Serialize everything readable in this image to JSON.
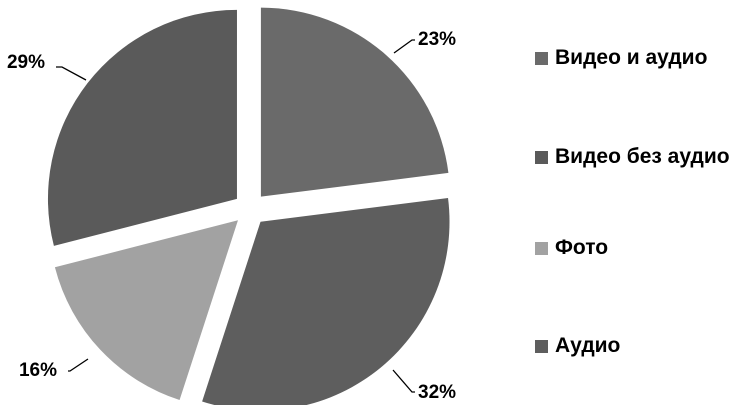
{
  "chart_data": {
    "type": "pie",
    "title": "",
    "categories": [
      "Видео и аудио",
      "Видео без аудио",
      "Фото",
      "Аудио"
    ],
    "values": [
      23,
      29,
      16,
      32
    ],
    "labels": [
      "23%",
      "29%",
      "16%",
      "32%"
    ],
    "colors": [
      "#6a6a6a",
      "#5a5a5a",
      "#a2a2a2",
      "#5e5e5e"
    ],
    "exploded": true,
    "legend_position": "right",
    "legend": [
      {
        "label": "Видео и аудио",
        "color": "#6a6a6a"
      },
      {
        "label": "Видео без аудио",
        "color": "#5a5a5a"
      },
      {
        "label": "Фото",
        "color": "#a2a2a2"
      },
      {
        "label": "Аудио",
        "color": "#5e5e5e"
      }
    ]
  }
}
